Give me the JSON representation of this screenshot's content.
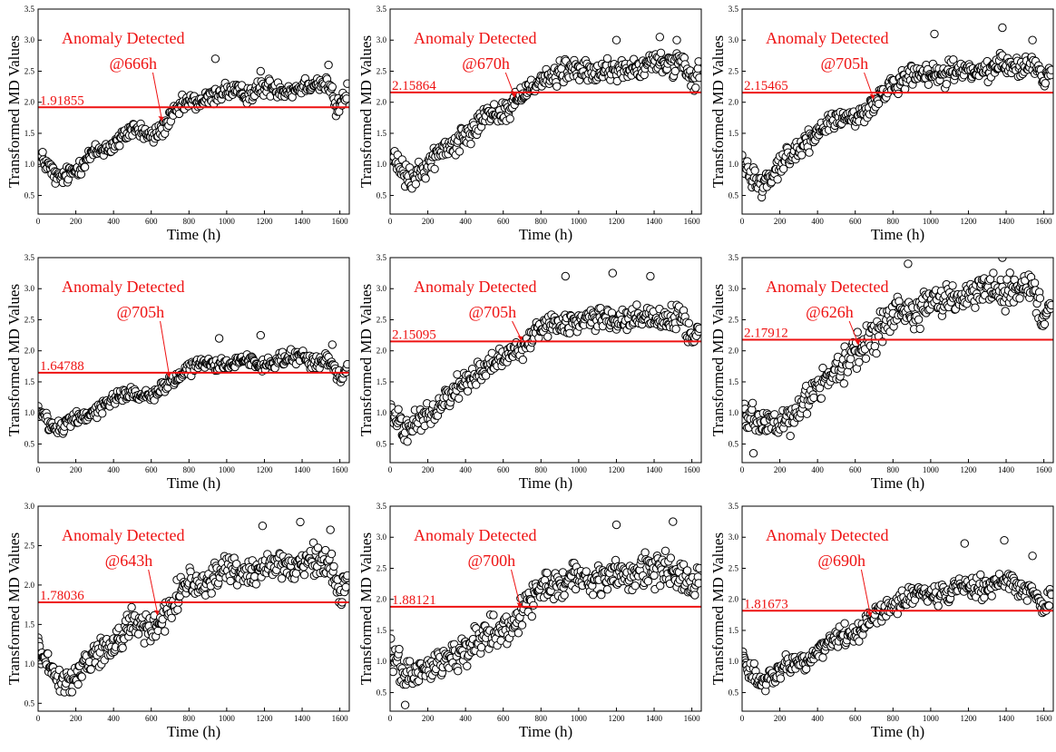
{
  "colors": {
    "threshold": "#ee1111",
    "annotation": "#ee1111",
    "marker_edge": "#000000",
    "marker_fill": "#ffffff",
    "frame": "#000000"
  },
  "chart_data": [
    {
      "type": "scatter",
      "xlabel": "Time (h)",
      "ylabel": "Transformed MD Values",
      "xlim": [
        0,
        1650
      ],
      "ylim": [
        0.2,
        3.5
      ],
      "xticks": [
        "0",
        "200",
        "400",
        "600",
        "800",
        "1000",
        "1200",
        "1400",
        "1600"
      ],
      "yticks": [
        "0.5",
        "1.0",
        "1.5",
        "2.0",
        "2.5",
        "3.0",
        "3.5"
      ],
      "threshold": {
        "value": 1.91855,
        "label": "1.91855"
      },
      "annotation": {
        "line1": "Anomaly Detected",
        "line2": "@666h"
      },
      "anomaly_time": 666,
      "trend": [
        [
          0,
          1.15
        ],
        [
          100,
          0.75
        ],
        [
          300,
          1.15
        ],
        [
          500,
          1.55
        ],
        [
          600,
          1.45
        ],
        [
          800,
          2.0
        ],
        [
          1000,
          2.15
        ],
        [
          1200,
          2.2
        ],
        [
          1400,
          2.25
        ],
        [
          1550,
          2.3
        ],
        [
          1580,
          1.9
        ],
        [
          1650,
          2.2
        ]
      ],
      "noise": 0.1,
      "outliers": [
        [
          940,
          2.7
        ],
        [
          1180,
          2.5
        ],
        [
          1540,
          2.6
        ]
      ]
    },
    {
      "type": "scatter",
      "xlabel": "Time (h)",
      "ylabel": "Transformed MD Values",
      "xlim": [
        0,
        1650
      ],
      "ylim": [
        0.2,
        3.5
      ],
      "xticks": [
        "0",
        "200",
        "400",
        "600",
        "800",
        "1000",
        "1200",
        "1400",
        "1600"
      ],
      "yticks": [
        "0.5",
        "1.0",
        "1.5",
        "2.0",
        "2.5",
        "3.0",
        "3.5"
      ],
      "threshold": {
        "value": 2.15864,
        "label": "2.15864"
      },
      "annotation": {
        "line1": "Anomaly Detected",
        "line2": "@670h"
      },
      "anomaly_time": 670,
      "trend": [
        [
          0,
          1.1
        ],
        [
          100,
          0.75
        ],
        [
          300,
          1.25
        ],
        [
          500,
          1.75
        ],
        [
          650,
          1.95
        ],
        [
          800,
          2.4
        ],
        [
          1000,
          2.5
        ],
        [
          1200,
          2.5
        ],
        [
          1400,
          2.6
        ],
        [
          1550,
          2.65
        ],
        [
          1600,
          2.3
        ],
        [
          1650,
          2.5
        ]
      ],
      "noise": 0.13,
      "outliers": [
        [
          1430,
          3.05
        ],
        [
          1520,
          3.0
        ],
        [
          1200,
          3.0
        ]
      ]
    },
    {
      "type": "scatter",
      "xlabel": "Time (h)",
      "ylabel": "Transformed MD Values",
      "xlim": [
        0,
        1650
      ],
      "ylim": [
        0.2,
        3.5
      ],
      "xticks": [
        "0",
        "200",
        "400",
        "600",
        "800",
        "1000",
        "1200",
        "1400",
        "1600"
      ],
      "yticks": [
        "0.5",
        "1.0",
        "1.5",
        "2.0",
        "2.5",
        "3.0",
        "3.5"
      ],
      "threshold": {
        "value": 2.15465,
        "label": "2.15465"
      },
      "annotation": {
        "line1": "Anomaly Detected",
        "line2": "@705h"
      },
      "anomaly_time": 705,
      "trend": [
        [
          0,
          1.0
        ],
        [
          100,
          0.7
        ],
        [
          300,
          1.25
        ],
        [
          500,
          1.75
        ],
        [
          650,
          1.8
        ],
        [
          800,
          2.3
        ],
        [
          1000,
          2.45
        ],
        [
          1200,
          2.5
        ],
        [
          1400,
          2.6
        ],
        [
          1550,
          2.6
        ],
        [
          1600,
          2.3
        ],
        [
          1650,
          2.55
        ]
      ],
      "noise": 0.12,
      "outliers": [
        [
          1020,
          3.1
        ],
        [
          1380,
          3.2
        ],
        [
          1540,
          3.0
        ]
      ]
    },
    {
      "type": "scatter",
      "xlabel": "Time (h)",
      "ylabel": "Transformed MD Values",
      "xlim": [
        0,
        1650
      ],
      "ylim": [
        0.2,
        3.5
      ],
      "xticks": [
        "0",
        "200",
        "400",
        "600",
        "800",
        "1000",
        "1200",
        "1400",
        "1600"
      ],
      "yticks": [
        "0.5",
        "1.0",
        "1.5",
        "2.0",
        "2.5",
        "3.0",
        "3.5"
      ],
      "threshold": {
        "value": 1.64788,
        "label": "1.64788"
      },
      "annotation": {
        "line1": "Anomaly Detected",
        "line2": "@705h"
      },
      "anomaly_time": 705,
      "trend": [
        [
          0,
          1.05
        ],
        [
          100,
          0.75
        ],
        [
          300,
          1.05
        ],
        [
          500,
          1.35
        ],
        [
          600,
          1.25
        ],
        [
          800,
          1.75
        ],
        [
          1000,
          1.8
        ],
        [
          1200,
          1.8
        ],
        [
          1400,
          1.9
        ],
        [
          1550,
          1.8
        ],
        [
          1600,
          1.5
        ],
        [
          1650,
          1.8
        ]
      ],
      "noise": 0.08,
      "outliers": [
        [
          960,
          2.2
        ],
        [
          1180,
          2.25
        ],
        [
          1560,
          2.1
        ]
      ]
    },
    {
      "type": "scatter",
      "xlabel": "Time (h)",
      "ylabel": "Transformed MD Values",
      "xlim": [
        0,
        1650
      ],
      "ylim": [
        0.2,
        3.5
      ],
      "xticks": [
        "0",
        "200",
        "400",
        "600",
        "800",
        "1000",
        "1200",
        "1400",
        "1600"
      ],
      "yticks": [
        "0.5",
        "1.0",
        "1.5",
        "2.0",
        "2.5",
        "3.0",
        "3.5"
      ],
      "threshold": {
        "value": 2.15095,
        "label": "2.15095"
      },
      "annotation": {
        "line1": "Anomaly Detected",
        "line2": "@705h"
      },
      "anomaly_time": 705,
      "trend": [
        [
          0,
          1.1
        ],
        [
          100,
          0.7
        ],
        [
          300,
          1.25
        ],
        [
          500,
          1.75
        ],
        [
          650,
          1.95
        ],
        [
          800,
          2.35
        ],
        [
          1000,
          2.5
        ],
        [
          1200,
          2.5
        ],
        [
          1400,
          2.55
        ],
        [
          1550,
          2.5
        ],
        [
          1600,
          2.2
        ],
        [
          1650,
          2.45
        ]
      ],
      "noise": 0.13,
      "outliers": [
        [
          930,
          3.2
        ],
        [
          1180,
          3.25
        ],
        [
          1380,
          3.2
        ]
      ]
    },
    {
      "type": "scatter",
      "xlabel": "Time (h)",
      "ylabel": "Transformed MD Values",
      "xlim": [
        0,
        1650
      ],
      "ylim": [
        0.2,
        3.5
      ],
      "xticks": [
        "0",
        "200",
        "400",
        "600",
        "800",
        "1000",
        "1200",
        "1400",
        "1600"
      ],
      "yticks": [
        "0.5",
        "1.0",
        "1.5",
        "2.0",
        "2.5",
        "3.0",
        "3.5"
      ],
      "threshold": {
        "value": 2.17912,
        "label": "2.17912"
      },
      "annotation": {
        "line1": "Anomaly Detected",
        "line2": "@626h"
      },
      "anomaly_time": 626,
      "trend": [
        [
          0,
          1.1
        ],
        [
          100,
          0.75
        ],
        [
          300,
          1.0
        ],
        [
          450,
          1.65
        ],
        [
          550,
          1.75
        ],
        [
          700,
          2.3
        ],
        [
          800,
          2.6
        ],
        [
          1000,
          2.75
        ],
        [
          1200,
          2.9
        ],
        [
          1400,
          3.0
        ],
        [
          1550,
          2.9
        ],
        [
          1600,
          2.5
        ],
        [
          1650,
          3.0
        ]
      ],
      "noise": 0.18,
      "outliers": [
        [
          880,
          3.4
        ],
        [
          1380,
          3.5
        ],
        [
          60,
          0.35
        ]
      ]
    },
    {
      "type": "scatter",
      "xlabel": "Time (h)",
      "ylabel": "Transformed MD Values",
      "xlim": [
        0,
        1650
      ],
      "ylim": [
        0.4,
        3.0
      ],
      "xticks": [
        "0",
        "200",
        "400",
        "600",
        "800",
        "1000",
        "1200",
        "1400",
        "1600"
      ],
      "yticks": [
        "0.5",
        "1.0",
        "1.5",
        "2.0",
        "2.5",
        "3.0"
      ],
      "threshold": {
        "value": 1.78036,
        "label": "1.78036"
      },
      "annotation": {
        "line1": "Anomaly Detected",
        "line2": "@643h"
      },
      "anomaly_time": 643,
      "trend": [
        [
          0,
          1.2
        ],
        [
          100,
          0.75
        ],
        [
          300,
          1.05
        ],
        [
          400,
          1.3
        ],
        [
          500,
          1.5
        ],
        [
          600,
          1.45
        ],
        [
          800,
          2.0
        ],
        [
          1000,
          2.15
        ],
        [
          1200,
          2.2
        ],
        [
          1400,
          2.3
        ],
        [
          1550,
          2.3
        ],
        [
          1600,
          1.8
        ],
        [
          1650,
          2.2
        ]
      ],
      "noise": 0.12,
      "outliers": [
        [
          1190,
          2.75
        ],
        [
          1390,
          2.8
        ],
        [
          1550,
          2.7
        ]
      ]
    },
    {
      "type": "scatter",
      "xlabel": "Time (h)",
      "ylabel": "Transformed MD Values",
      "xlim": [
        0,
        1650
      ],
      "ylim": [
        0.2,
        3.5
      ],
      "xticks": [
        "0",
        "200",
        "400",
        "600",
        "800",
        "1000",
        "1200",
        "1400",
        "1600"
      ],
      "yticks": [
        "0.5",
        "1.0",
        "1.5",
        "2.0",
        "2.5",
        "3.0",
        "3.5"
      ],
      "threshold": {
        "value": 1.88121,
        "label": "1.88121"
      },
      "annotation": {
        "line1": "Anomaly Detected",
        "line2": "@700h"
      },
      "anomaly_time": 700,
      "trend": [
        [
          0,
          1.05
        ],
        [
          100,
          0.75
        ],
        [
          300,
          1.05
        ],
        [
          500,
          1.4
        ],
        [
          650,
          1.6
        ],
        [
          800,
          2.2
        ],
        [
          1000,
          2.35
        ],
        [
          1200,
          2.4
        ],
        [
          1400,
          2.5
        ],
        [
          1550,
          2.45
        ],
        [
          1600,
          2.1
        ],
        [
          1650,
          2.4
        ]
      ],
      "noise": 0.18,
      "outliers": [
        [
          1200,
          3.2
        ],
        [
          1500,
          3.25
        ],
        [
          80,
          0.3
        ]
      ]
    },
    {
      "type": "scatter",
      "xlabel": "Time (h)",
      "ylabel": "Transformed MD Values",
      "xlim": [
        0,
        1650
      ],
      "ylim": [
        0.2,
        3.5
      ],
      "xticks": [
        "0",
        "200",
        "400",
        "600",
        "800",
        "1000",
        "1200",
        "1400",
        "1600"
      ],
      "yticks": [
        "0.5",
        "1.0",
        "1.5",
        "2.0",
        "2.5",
        "3.0",
        "3.5"
      ],
      "threshold": {
        "value": 1.81673,
        "label": "1.81673"
      },
      "annotation": {
        "line1": "Anomaly Detected",
        "line2": "@690h"
      },
      "anomaly_time": 690,
      "trend": [
        [
          0,
          1.0
        ],
        [
          100,
          0.7
        ],
        [
          300,
          1.0
        ],
        [
          500,
          1.35
        ],
        [
          650,
          1.55
        ],
        [
          800,
          1.95
        ],
        [
          1000,
          2.1
        ],
        [
          1200,
          2.2
        ],
        [
          1400,
          2.25
        ],
        [
          1550,
          2.2
        ],
        [
          1600,
          1.8
        ],
        [
          1650,
          2.1
        ]
      ],
      "noise": 0.12,
      "outliers": [
        [
          1180,
          2.9
        ],
        [
          1390,
          2.95
        ],
        [
          1540,
          2.7
        ]
      ]
    }
  ]
}
